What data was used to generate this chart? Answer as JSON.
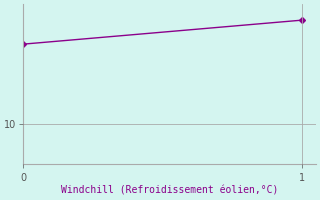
{
  "x": [
    0,
    1
  ],
  "y": [
    13.0,
    13.9
  ],
  "line_color": "#8B008B",
  "marker": "D",
  "markersize": 3,
  "linestyle": "-",
  "linewidth": 1.0,
  "background_color": "#d4f5f0",
  "xlabel": "Windchill (Refroidissement éolien,°C)",
  "xlabel_color": "#8B008B",
  "xlabel_fontsize": 7,
  "grid_color": "#aaaaaa",
  "xlim": [
    0,
    1.05
  ],
  "ylim": [
    8.5,
    14.5
  ],
  "yticks": [
    10
  ],
  "xticks": [
    0,
    1
  ],
  "tick_fontsize": 7,
  "tick_color": "#555555",
  "figsize": [
    3.2,
    2.0
  ],
  "dpi": 100
}
